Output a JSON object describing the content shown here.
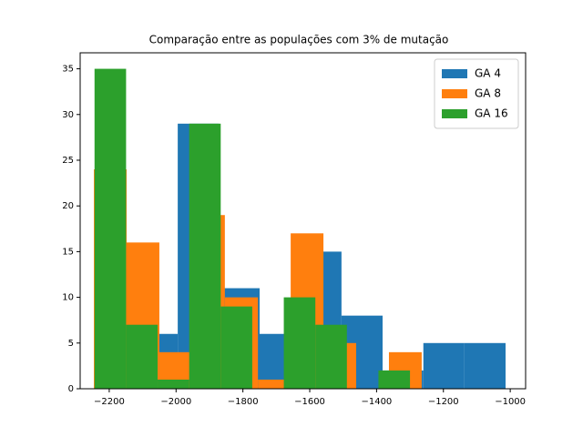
{
  "chart_data": {
    "type": "histogram",
    "title": "Comparação entre as populações com 3% de mutação",
    "series": [
      {
        "name": "GA 4",
        "color": "#1f77b4",
        "bins": [
          -2240,
          -2117,
          -1995,
          -1872,
          -1750,
          -1627,
          -1505,
          -1382,
          -1260,
          -1137,
          -1014
        ],
        "values": [
          13,
          6,
          29,
          11,
          6,
          15,
          8,
          2,
          5,
          5
        ]
      },
      {
        "name": "GA 8",
        "color": "#ff7f0e",
        "bins": [
          -2246,
          -2148,
          -2050,
          -1952,
          -1854,
          -1755,
          -1657,
          -1559,
          -1461,
          -1363,
          -1265
        ],
        "values": [
          24,
          16,
          4,
          19,
          10,
          1,
          17,
          5,
          0,
          4
        ]
      },
      {
        "name": "GA 16",
        "color": "#2ca02c",
        "bins": [
          -2244,
          -2149.6,
          -2055.2,
          -1960.8,
          -1866.4,
          -1772,
          -1677.6,
          -1583.2,
          -1488.8,
          -1394.4,
          -1300
        ],
        "values": [
          35,
          7,
          1,
          29,
          9,
          0,
          10,
          7,
          0,
          2
        ]
      }
    ],
    "xlim": [
      -2287,
      -954
    ],
    "ylim": [
      0,
      36.75
    ],
    "xticks": [
      {
        "value": -2200,
        "label": "−2200"
      },
      {
        "value": -2000,
        "label": "−2000"
      },
      {
        "value": -1800,
        "label": "−1800"
      },
      {
        "value": -1600,
        "label": "−1600"
      },
      {
        "value": -1400,
        "label": "−1400"
      },
      {
        "value": -1200,
        "label": "−1200"
      },
      {
        "value": -1000,
        "label": "−1000"
      }
    ],
    "yticks": [
      0,
      5,
      10,
      15,
      20,
      25,
      30,
      35
    ],
    "legend": "upper right"
  }
}
